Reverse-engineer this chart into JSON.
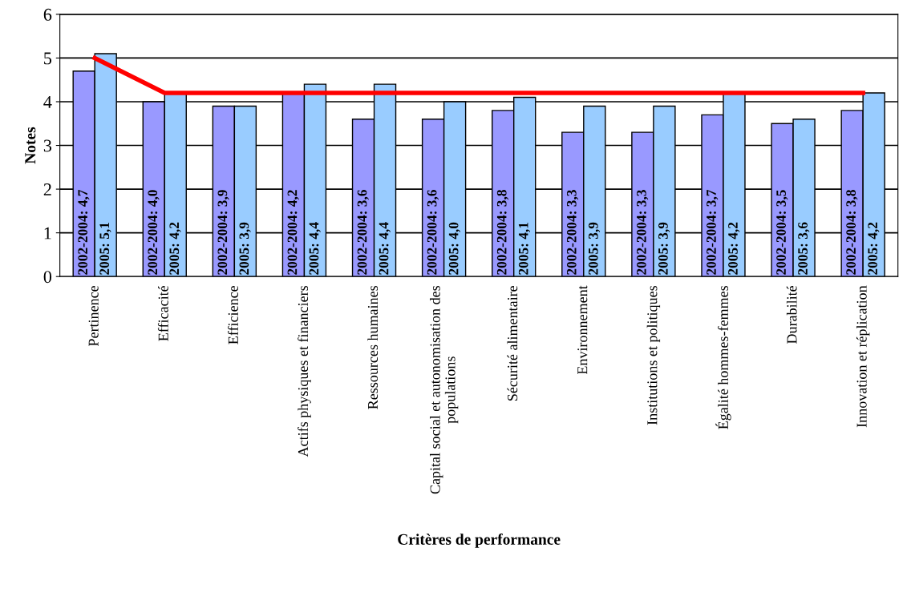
{
  "chart_data": {
    "type": "bar",
    "xlabel": "Critères de performance",
    "ylabel": "Notes",
    "categories": [
      "Pertinence",
      "Efficacité",
      "Efficience",
      "Actifs physiques et financiers",
      "Ressources humaines",
      "Capital social et autonomisation des\npopulations",
      "Sécurité alimentaire",
      "Environnement",
      "Institutions et politiques",
      "Égalité hommes-femmes",
      "Durabilité",
      "Innovation et réplication"
    ],
    "series": [
      {
        "color": "#9999ff",
        "values": [
          4.7,
          4.0,
          3.9,
          4.2,
          3.6,
          3.6,
          3.8,
          3.3,
          3.3,
          3.7,
          3.5,
          3.8
        ],
        "value_labels": [
          "2002-2004: 4,7",
          "2002-2004: 4,0",
          "2002-2004: 3,9",
          "2002-2004: 4,2",
          "2002-2004: 3,6",
          "2002-2004: 3,6",
          "2002-2004: 3,8",
          "2002-2004: 3,3",
          "2002-2004: 3,3",
          "2002-2004: 3,7",
          "2002-2004: 3,5",
          "2002-2004: 3,8"
        ]
      },
      {
        "color": "#99ccff",
        "values": [
          5.1,
          4.2,
          3.9,
          4.4,
          4.4,
          4.0,
          4.1,
          3.9,
          3.9,
          4.2,
          3.6,
          4.2
        ],
        "value_labels": [
          "2005: 5,1",
          "2005: 4,2",
          "2005: 3,9",
          "2005: 4,4",
          "2005: 4,4",
          "2005: 4,0",
          "2005: 4,1",
          "2005: 3,9",
          "2005: 3,9",
          "2005: 4,2",
          "2005: 3,6",
          "2005: 4,2"
        ]
      },
      {
        "type": "line",
        "color": "#ff0000",
        "values": [
          5.0,
          4.2,
          4.2,
          4.2,
          4.2,
          4.2,
          4.2,
          4.2,
          4.2,
          4.2,
          4.2,
          4.2
        ]
      }
    ],
    "ylim": [
      0,
      6
    ],
    "yticks": [
      0,
      1,
      2,
      3,
      4,
      5,
      6
    ],
    "grid": "y"
  }
}
